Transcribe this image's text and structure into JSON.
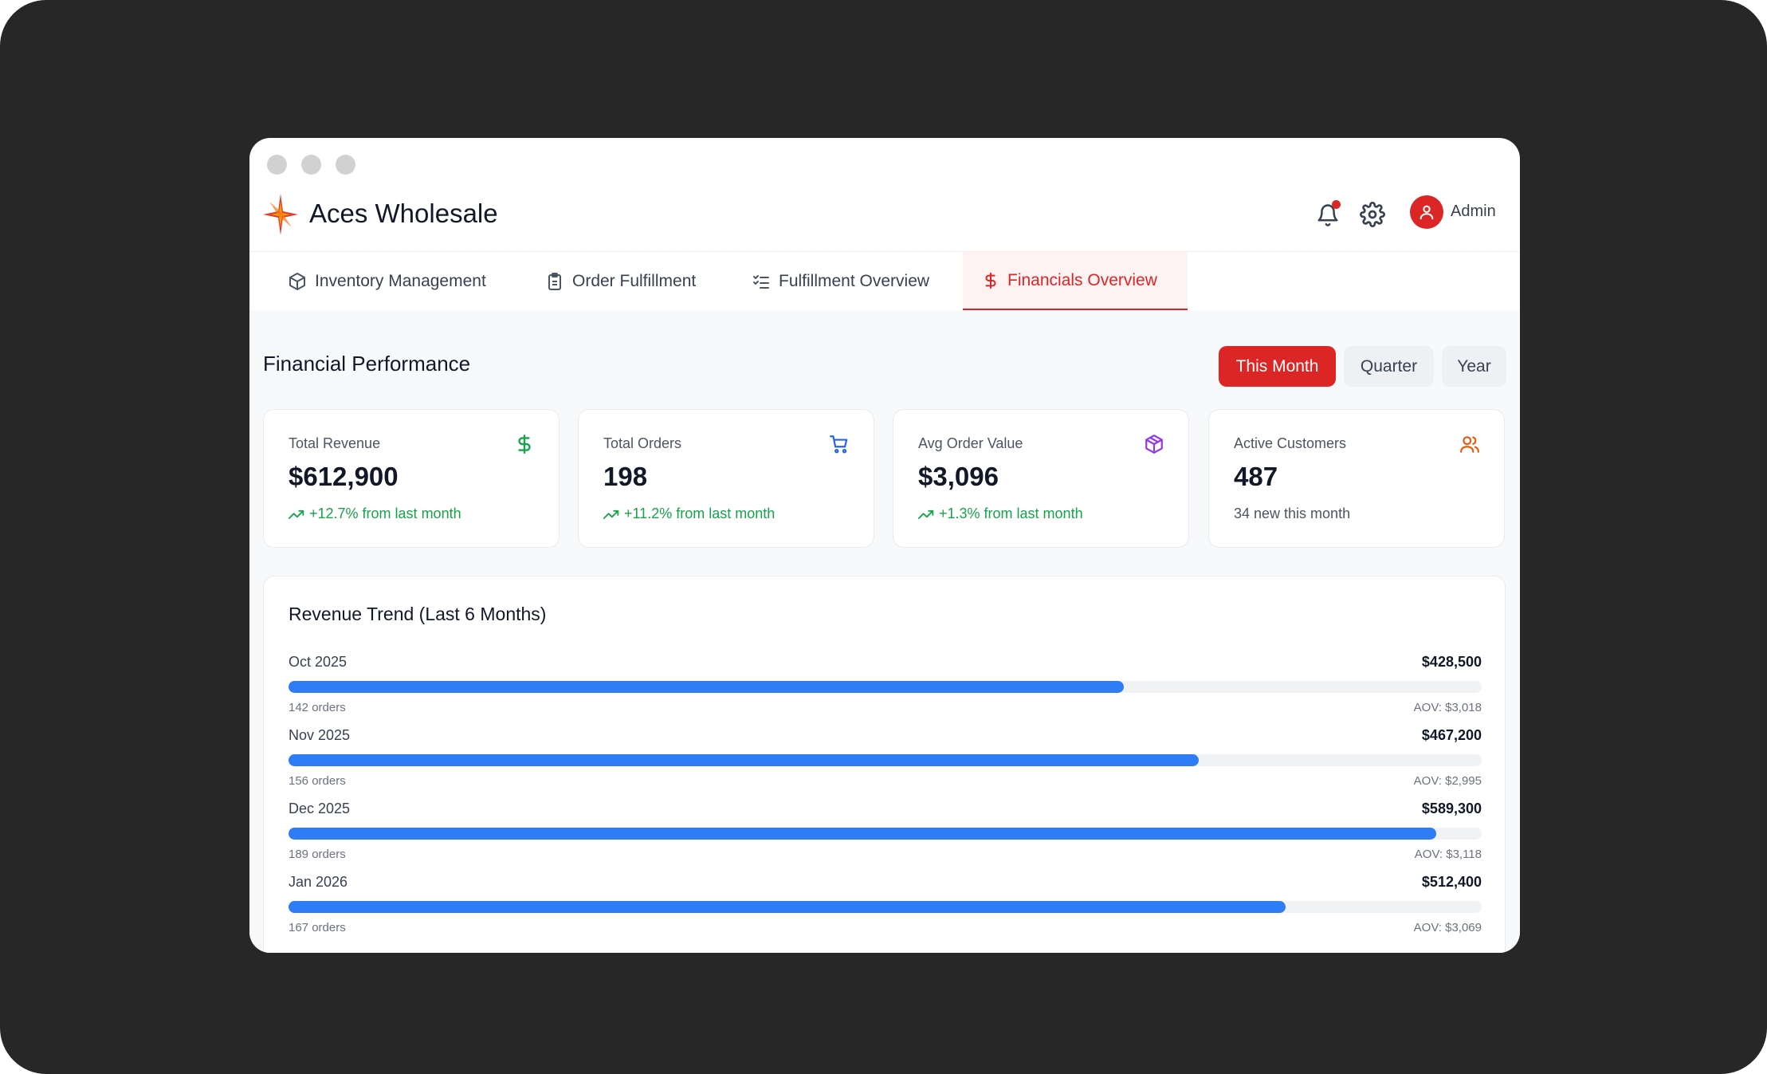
{
  "app": {
    "title": "Aces Wholesale",
    "user": "Admin"
  },
  "tabs": [
    {
      "label": "Inventory Management",
      "icon": "box-icon"
    },
    {
      "label": "Order Fulfillment",
      "icon": "clipboard-icon"
    },
    {
      "label": "Fulfillment Overview",
      "icon": "checklist-icon"
    },
    {
      "label": "Financials Overview",
      "icon": "dollar-icon",
      "active": true
    }
  ],
  "section": {
    "title": "Financial Performance"
  },
  "ranges": [
    {
      "label": "This Month",
      "active": true
    },
    {
      "label": "Quarter",
      "active": false
    },
    {
      "label": "Year",
      "active": false
    }
  ],
  "cards": [
    {
      "label": "Total Revenue",
      "value": "$612,900",
      "change": "+12.7% from last month",
      "icon": "dollar-icon",
      "color": "#16a34a"
    },
    {
      "label": "Total Orders",
      "value": "198",
      "change": "+11.2% from last month",
      "icon": "cart-icon",
      "color": "#2563eb"
    },
    {
      "label": "Avg Order Value",
      "value": "$3,096",
      "change": "+1.3% from last month",
      "icon": "package-icon",
      "color": "#9333ea"
    },
    {
      "label": "Active Customers",
      "value": "487",
      "note": "34 new this month",
      "icon": "users-icon",
      "color": "#ea580c"
    }
  ],
  "trend": {
    "title": "Revenue Trend (Last 6 Months)",
    "rows": [
      {
        "month": "Oct 2025",
        "amount": "$428,500",
        "orders": "142 orders",
        "aov": "AOV: $3,018",
        "share": 0.7
      },
      {
        "month": "Nov 2025",
        "amount": "$467,200",
        "orders": "156 orders",
        "aov": "AOV: $2,995",
        "share": 0.763
      },
      {
        "month": "Dec 2025",
        "amount": "$589,300",
        "orders": "189 orders",
        "aov": "AOV: $3,118",
        "share": 0.962
      },
      {
        "month": "Jan 2026",
        "amount": "$512,400",
        "orders": "167 orders",
        "aov": "AOV: $3,069",
        "share": 0.836
      }
    ]
  },
  "colors": {
    "accent": "#dc2626",
    "bar": "#2f7df6",
    "positive": "#16a34a"
  }
}
